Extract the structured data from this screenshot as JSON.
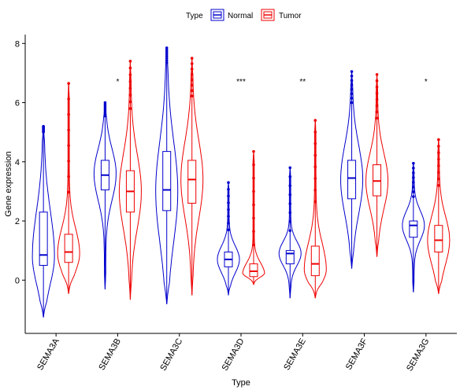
{
  "chart_data": {
    "type": "violin-boxplot",
    "xlabel": "Type",
    "ylabel": "Gene expression",
    "ylim": [
      -1.8,
      8.3
    ],
    "yticks": [
      0,
      2,
      4,
      6,
      8
    ],
    "legend": {
      "title": "Type",
      "position": "top",
      "entries": [
        {
          "name": "Normal",
          "color": "#0000cd"
        },
        {
          "name": "Tumor",
          "color": "#ee0000"
        }
      ]
    },
    "categories": [
      "SEMA3A",
      "SEMA3B",
      "SEMA3C",
      "SEMA3D",
      "SEMA3E",
      "SEMA3F",
      "SEMA3G"
    ],
    "significance": [
      "",
      "*",
      "",
      "***",
      "**",
      "",
      "*"
    ],
    "series": [
      {
        "name": "Normal",
        "color": "#0000cd",
        "stats": [
          {
            "min": -1.25,
            "q1": 0.5,
            "median": 0.85,
            "q3": 2.3,
            "max": 5.2,
            "peak": 0.8
          },
          {
            "min": -0.3,
            "q1": 3.05,
            "median": 3.55,
            "q3": 4.05,
            "max": 6.0,
            "peak": 3.6
          },
          {
            "min": -0.8,
            "q1": 2.35,
            "median": 3.05,
            "q3": 4.35,
            "max": 7.85,
            "peak": 3.0
          },
          {
            "min": -0.5,
            "q1": 0.45,
            "median": 0.7,
            "q3": 0.95,
            "max": 3.3,
            "peak": 0.7
          },
          {
            "min": -0.6,
            "q1": 0.55,
            "median": 0.9,
            "q3": 1.0,
            "max": 3.8,
            "peak": 0.9
          },
          {
            "min": 0.4,
            "q1": 2.75,
            "median": 3.45,
            "q3": 4.05,
            "max": 7.05,
            "peak": 3.4
          },
          {
            "min": -0.4,
            "q1": 1.45,
            "median": 1.85,
            "q3": 2.0,
            "max": 3.95,
            "peak": 1.85
          }
        ]
      },
      {
        "name": "Tumor",
        "color": "#ee0000",
        "stats": [
          {
            "min": -0.45,
            "q1": 0.6,
            "median": 0.95,
            "q3": 1.55,
            "max": 6.65,
            "peak": 0.9
          },
          {
            "min": -0.65,
            "q1": 2.3,
            "median": 3.0,
            "q3": 3.7,
            "max": 7.4,
            "peak": 3.0
          },
          {
            "min": -0.5,
            "q1": 2.6,
            "median": 3.4,
            "q3": 4.05,
            "max": 7.5,
            "peak": 3.4
          },
          {
            "min": -0.15,
            "q1": 0.12,
            "median": 0.3,
            "q3": 0.55,
            "max": 4.35,
            "peak": 0.2
          },
          {
            "min": -0.6,
            "q1": 0.15,
            "median": 0.55,
            "q3": 1.15,
            "max": 5.4,
            "peak": 0.35
          },
          {
            "min": 0.8,
            "q1": 2.85,
            "median": 3.35,
            "q3": 3.9,
            "max": 6.95,
            "peak": 3.35
          },
          {
            "min": -0.45,
            "q1": 0.95,
            "median": 1.35,
            "q3": 1.85,
            "max": 4.75,
            "peak": 1.35
          }
        ]
      }
    ]
  }
}
